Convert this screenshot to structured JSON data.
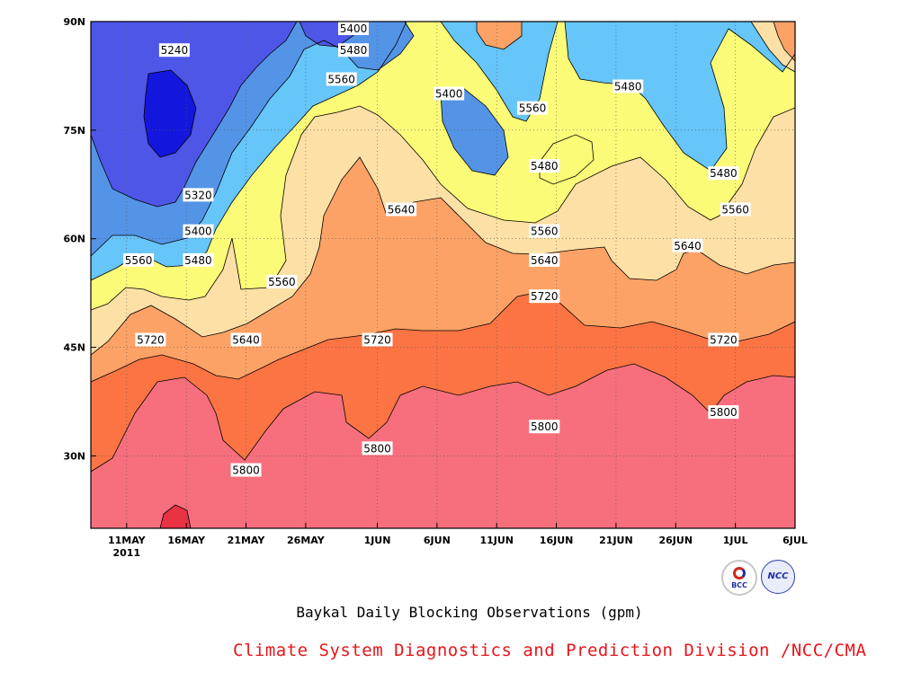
{
  "chart_data": {
    "type": "heatmap",
    "title": "Baykal Daily Blocking Observations (gpm)",
    "xlabel": "",
    "ylabel": "",
    "x_ticks": [
      "11MAY",
      "16MAY",
      "21MAY",
      "26MAY",
      "1JUN",
      "6JUN",
      "11JUN",
      "16JUN",
      "21JUN",
      "26JUN",
      "1JUL",
      "6JUL"
    ],
    "x_year_label": "2011",
    "x_range": [
      "8MAY2011",
      "6JUL2011"
    ],
    "y_ticks": [
      "30N",
      "45N",
      "60N",
      "75N",
      "90N"
    ],
    "y_range": [
      20,
      90
    ],
    "contour_levels": [
      5240,
      5320,
      5400,
      5480,
      5560,
      5640,
      5720,
      5800
    ],
    "level_colors": {
      "below_5240": "#1316dd",
      "5240_5320": "#4e56e8",
      "5320_5400": "#5494e6",
      "5400_5480": "#66c5f9",
      "5480_5560": "#fcfb78",
      "5560_5640": "#fde0a5",
      "5640_5720": "#fda266",
      "5720_5800": "#fc7443",
      "5800_5880": "#f76f7d",
      "above_5880": "#ea3245"
    },
    "contour_labels": [
      {
        "text": "5240",
        "date": "15MAY",
        "lat": 86
      },
      {
        "text": "5320",
        "date": "17MAY",
        "lat": 66
      },
      {
        "text": "5400",
        "date": "17MAY",
        "lat": 61
      },
      {
        "text": "5480",
        "date": "17MAY",
        "lat": 57
      },
      {
        "text": "5560",
        "date": "12MAY",
        "lat": 57
      },
      {
        "text": "5560",
        "date": "24MAY",
        "lat": 54
      },
      {
        "text": "5640",
        "date": "21MAY",
        "lat": 46
      },
      {
        "text": "5720",
        "date": "13MAY",
        "lat": 46
      },
      {
        "text": "5800",
        "date": "21MAY",
        "lat": 28
      },
      {
        "text": "5400",
        "date": "30MAY",
        "lat": 89
      },
      {
        "text": "5480",
        "date": "30MAY",
        "lat": 86
      },
      {
        "text": "5560",
        "date": "29MAY",
        "lat": 82
      },
      {
        "text": "5640",
        "date": "3JUN",
        "lat": 64
      },
      {
        "text": "5720",
        "date": "1JUN",
        "lat": 46
      },
      {
        "text": "5800",
        "date": "1JUN",
        "lat": 31
      },
      {
        "text": "5400",
        "date": "7JUN",
        "lat": 80
      },
      {
        "text": "5560",
        "date": "14JUN",
        "lat": 78
      },
      {
        "text": "5480",
        "date": "15JUN",
        "lat": 70
      },
      {
        "text": "5480",
        "date": "22JUN",
        "lat": 81
      },
      {
        "text": "5560",
        "date": "15JUN",
        "lat": 61
      },
      {
        "text": "5640",
        "date": "15JUN",
        "lat": 57
      },
      {
        "text": "5720",
        "date": "15JUN",
        "lat": 52
      },
      {
        "text": "5800",
        "date": "15JUN",
        "lat": 34
      },
      {
        "text": "5640",
        "date": "27JUN",
        "lat": 59
      },
      {
        "text": "5480",
        "date": "30JUN",
        "lat": 69
      },
      {
        "text": "5560",
        "date": "1JUL",
        "lat": 64
      },
      {
        "text": "5720",
        "date": "30JUN",
        "lat": 46
      },
      {
        "text": "5800",
        "date": "30JUN",
        "lat": 36
      }
    ],
    "grid": true,
    "grid_style": "dotted"
  },
  "credit": "Climate System Diagnostics and Prediction Division /NCC/CMA",
  "logos": {
    "left": {
      "icon": "bcc-logo",
      "text": "BCC"
    },
    "right": {
      "icon": "ncc-logo",
      "text": "NCC"
    }
  }
}
